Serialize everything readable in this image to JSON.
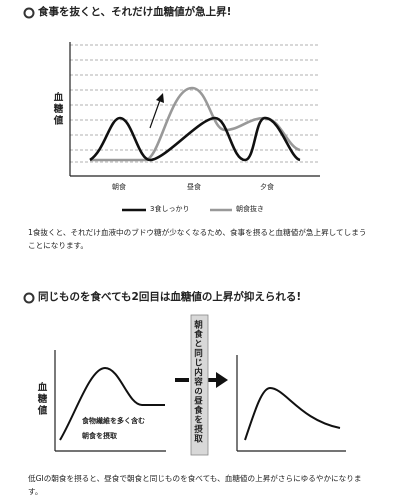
{
  "section1": {
    "heading": "食事を抜くと、それだけ血糖値が急上昇!",
    "y_label": "血糖値",
    "x_labels": [
      "朝食",
      "昼食",
      "夕食"
    ],
    "legend": [
      "3食しっかり",
      "朝食抜き"
    ],
    "caption": "1食抜くと、それだけ血液中のブドウ糖が少なくなるため、食事を摂ると血糖値が急上昇してしまうことになります。"
  },
  "section2": {
    "heading": "同じものを食べても2回目は血糖値の上昇が抑えられる!",
    "y_label": "血糖値",
    "annotation": [
      "食物繊維を多く含む",
      "朝食を摂取"
    ],
    "arrow_label": "朝食と同じ内容の昼食を摂取",
    "caption": "低GIの朝食を摂ると、昼食で朝食と同じものを食べても、血糖値の上昇がさらにゆるやかになります。"
  }
}
